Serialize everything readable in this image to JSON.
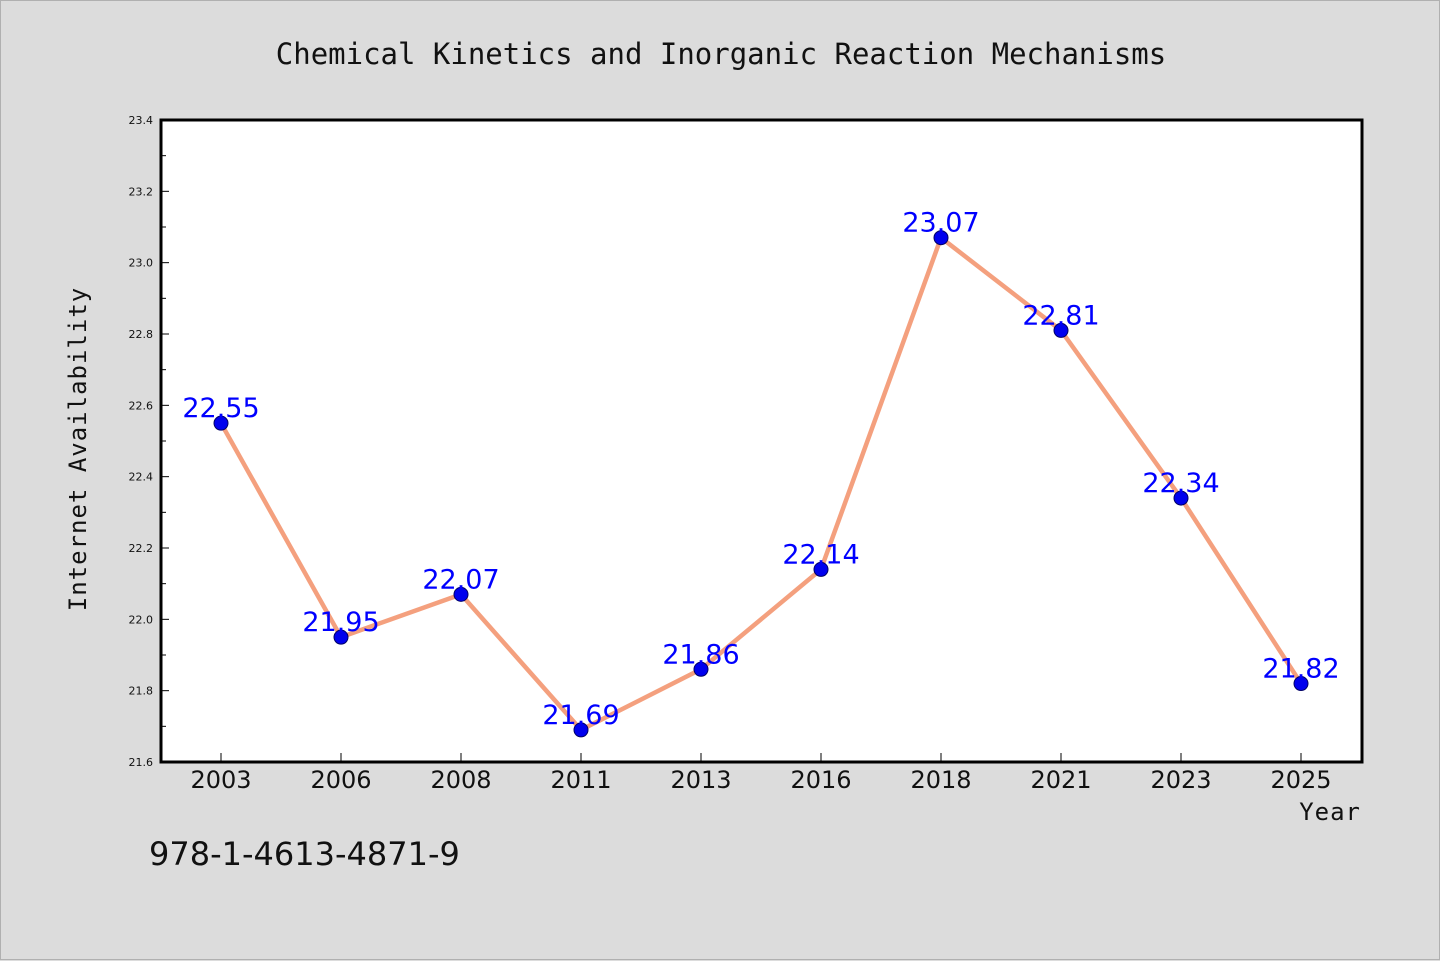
{
  "chart_data": {
    "type": "line",
    "title": "Chemical Kinetics and Inorganic Reaction Mechanisms",
    "xlabel": "Year",
    "ylabel": "Internet Availability",
    "categories": [
      "2003",
      "2006",
      "2008",
      "2011",
      "2013",
      "2016",
      "2018",
      "2021",
      "2023",
      "2025"
    ],
    "series": [
      {
        "values": [
          22.55,
          21.95,
          22.07,
          21.69,
          21.86,
          22.14,
          23.07,
          22.81,
          22.34,
          21.82
        ],
        "line_color": "#f4a07e",
        "marker_color": "#0000ee",
        "label_color": "#0000ff"
      }
    ],
    "data_labels": [
      "22.55",
      "21.95",
      "22.07",
      "21.69",
      "21.86",
      "22.14",
      "23.07",
      "22.81",
      "22.34",
      "21.82"
    ],
    "ylim": [
      21.6,
      23.4
    ],
    "yticks": [
      "21.6",
      "21.8",
      "22.0",
      "22.2",
      "22.4",
      "22.6",
      "22.8",
      "23.0",
      "23.2",
      "23.4"
    ],
    "grid": false,
    "legend": "none"
  },
  "footer": {
    "isbn": "978-1-4613-4871-9"
  }
}
